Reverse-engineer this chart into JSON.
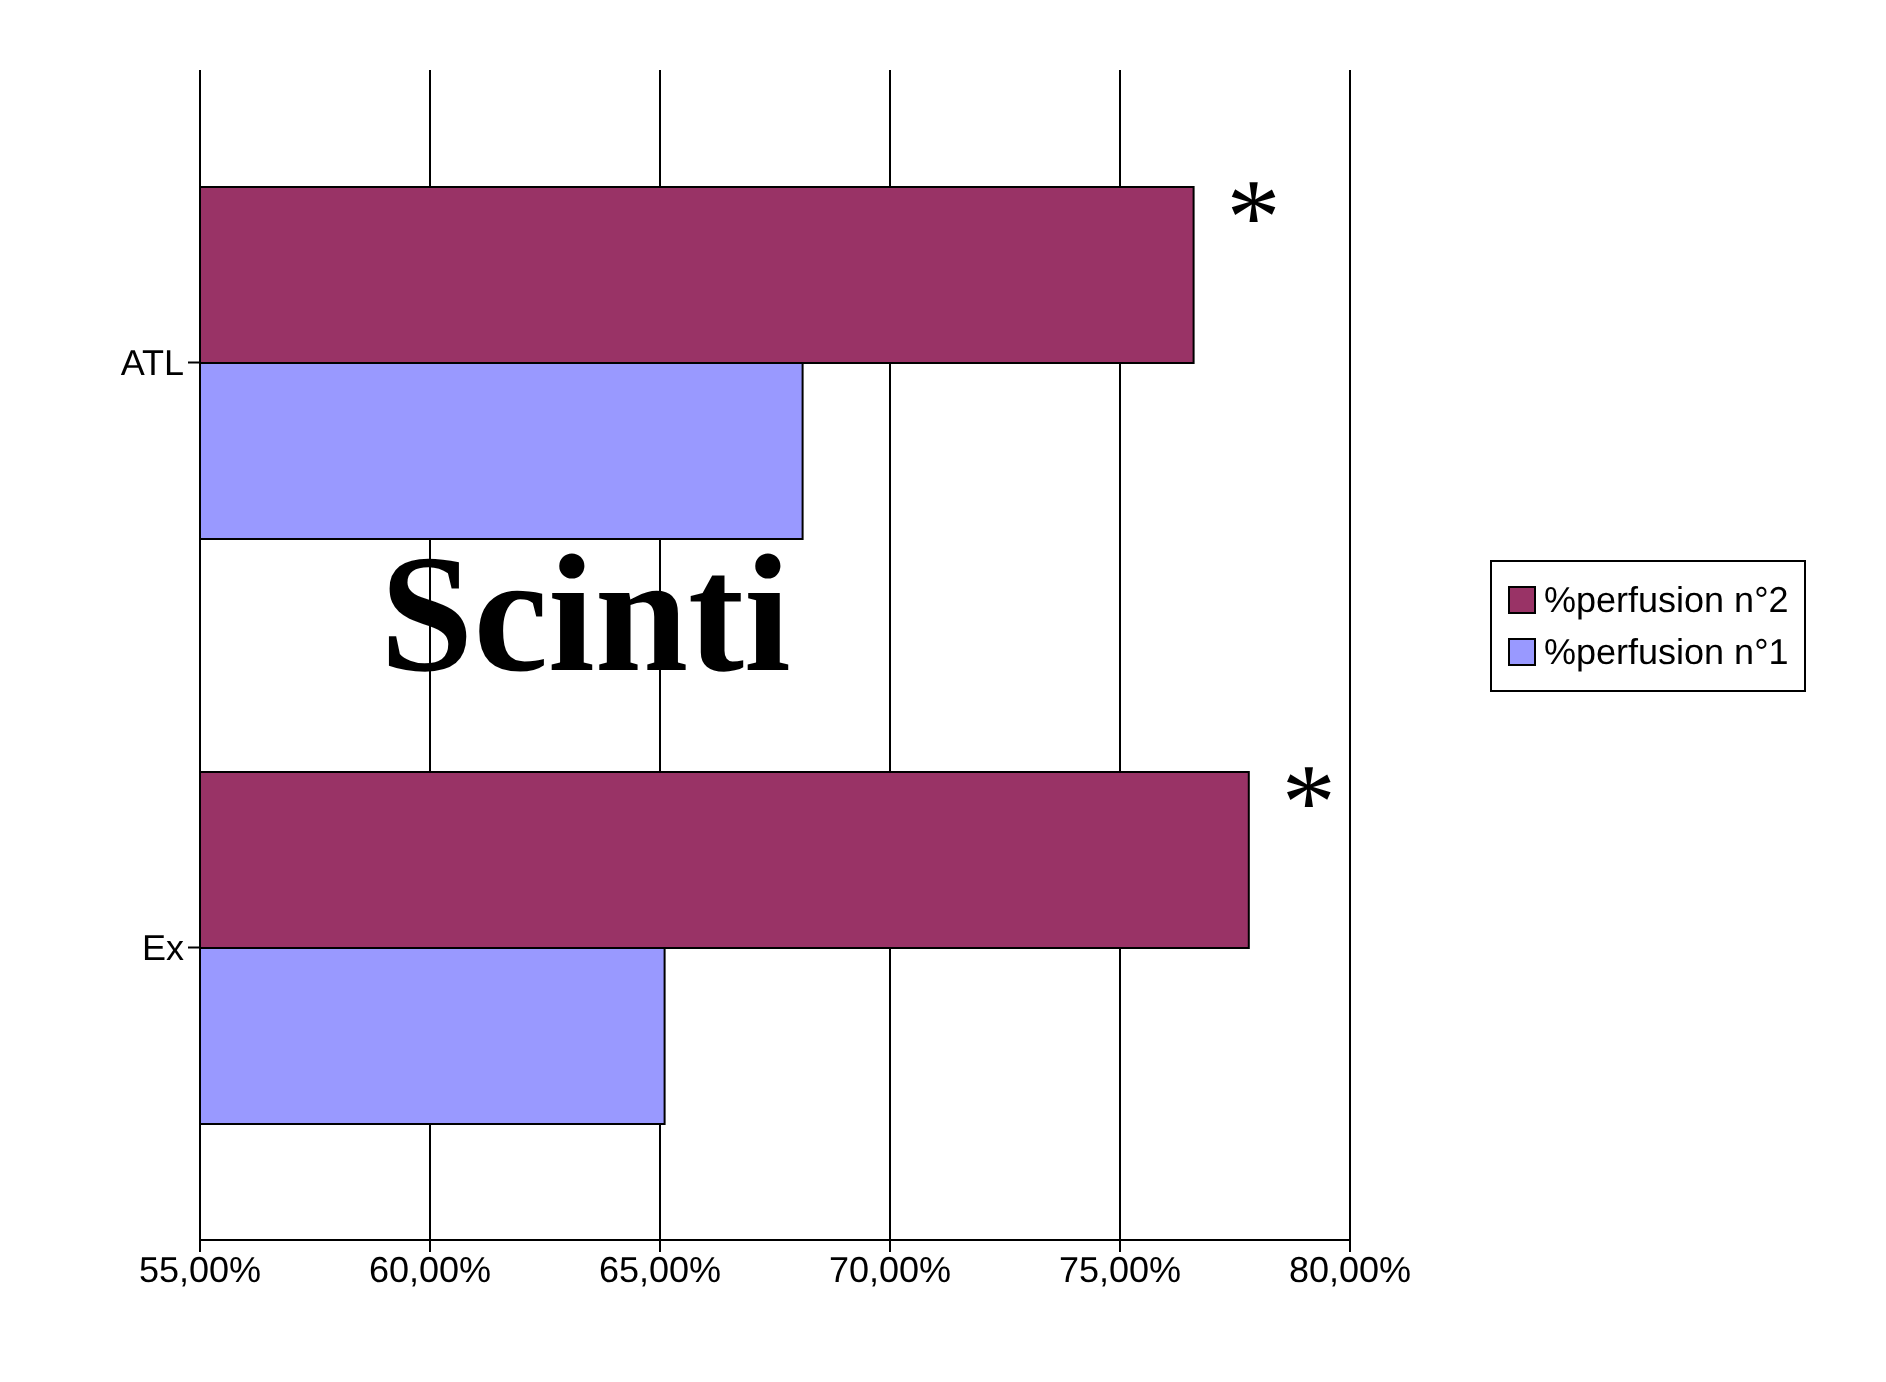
{
  "chart_data": {
    "type": "bar",
    "orientation": "horizontal",
    "title": "Scinti",
    "categories": [
      "ATL",
      "Ex"
    ],
    "series": [
      {
        "name": "%perfusion n°2",
        "color": "#993366",
        "values": [
          76.6,
          77.8
        ]
      },
      {
        "name": "%perfusion n°1",
        "color": "#9999ff",
        "values": [
          68.1,
          65.1
        ]
      }
    ],
    "xlim": [
      55,
      80
    ],
    "xticks": [
      {
        "value": 55,
        "label": "55,00%"
      },
      {
        "value": 60,
        "label": "60,00%"
      },
      {
        "value": 65,
        "label": "65,00%"
      },
      {
        "value": 70,
        "label": "70,00%"
      },
      {
        "value": 75,
        "label": "75,00%"
      },
      {
        "value": 80,
        "label": "80,00%"
      }
    ],
    "grid": "x",
    "legend": "right",
    "annotations": [
      {
        "text": "*",
        "x": 76.6,
        "y": "ATL"
      },
      {
        "text": "*",
        "x": 77.8,
        "y": "Ex"
      }
    ]
  }
}
